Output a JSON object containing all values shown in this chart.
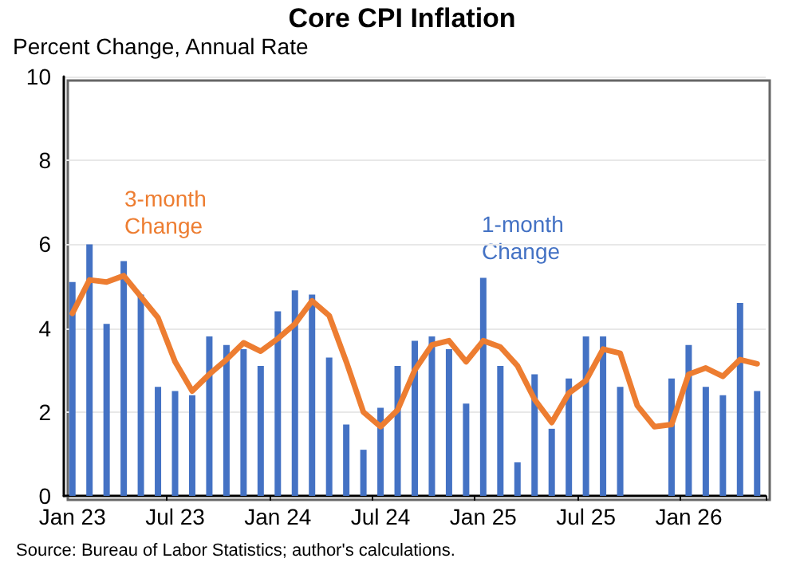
{
  "chart_data": {
    "type": "bar",
    "title": "Core CPI Inflation",
    "ylabel": "Percent Change, Annual Rate",
    "categories": [
      "Jan 23",
      null,
      null,
      null,
      null,
      null,
      "Jul 23",
      null,
      null,
      null,
      null,
      null,
      "Jan 24",
      null,
      null,
      null,
      null,
      null,
      "Jul 24",
      null,
      null,
      null,
      null,
      null,
      "Jan 25",
      null,
      null,
      null,
      null,
      null,
      "Jul 25",
      null,
      null,
      null,
      null,
      null,
      "Jan 26",
      null,
      null,
      null,
      null
    ],
    "series": [
      {
        "name": "1-month Change",
        "color": "#4472c4",
        "values": [
          5.1,
          6.0,
          4.1,
          5.6,
          4.8,
          2.6,
          2.5,
          2.4,
          3.8,
          3.6,
          3.5,
          3.1,
          4.4,
          4.9,
          4.8,
          3.3,
          1.7,
          1.1,
          2.1,
          3.1,
          3.7,
          3.8,
          3.5,
          2.2,
          5.2,
          3.1,
          0.8,
          2.9,
          1.6,
          2.8,
          3.8,
          3.8,
          2.6,
          null,
          null,
          2.8,
          3.6,
          2.6,
          2.4,
          4.6,
          2.5
        ]
      },
      {
        "name": "3-month Change",
        "type": "line",
        "color": "#ed7d31",
        "values": [
          4.35,
          5.15,
          5.1,
          5.25,
          4.75,
          4.25,
          3.2,
          2.5,
          2.9,
          3.25,
          3.65,
          3.45,
          3.75,
          4.1,
          4.65,
          4.3,
          3.2,
          2.0,
          1.65,
          2.05,
          3.0,
          3.6,
          3.7,
          3.2,
          3.7,
          3.55,
          3.1,
          2.3,
          1.75,
          2.45,
          2.75,
          3.5,
          3.4,
          2.15,
          1.65,
          1.7,
          2.9,
          3.05,
          2.85,
          3.25,
          3.15
        ]
      }
    ],
    "ylim": [
      0,
      10
    ],
    "yticks": [
      0,
      2,
      4,
      6,
      8,
      10
    ],
    "grid": "y",
    "legend": false,
    "marker": "none",
    "annotations": [
      "Source: Bureau of Labor Statistics; author's calculations."
    ]
  }
}
